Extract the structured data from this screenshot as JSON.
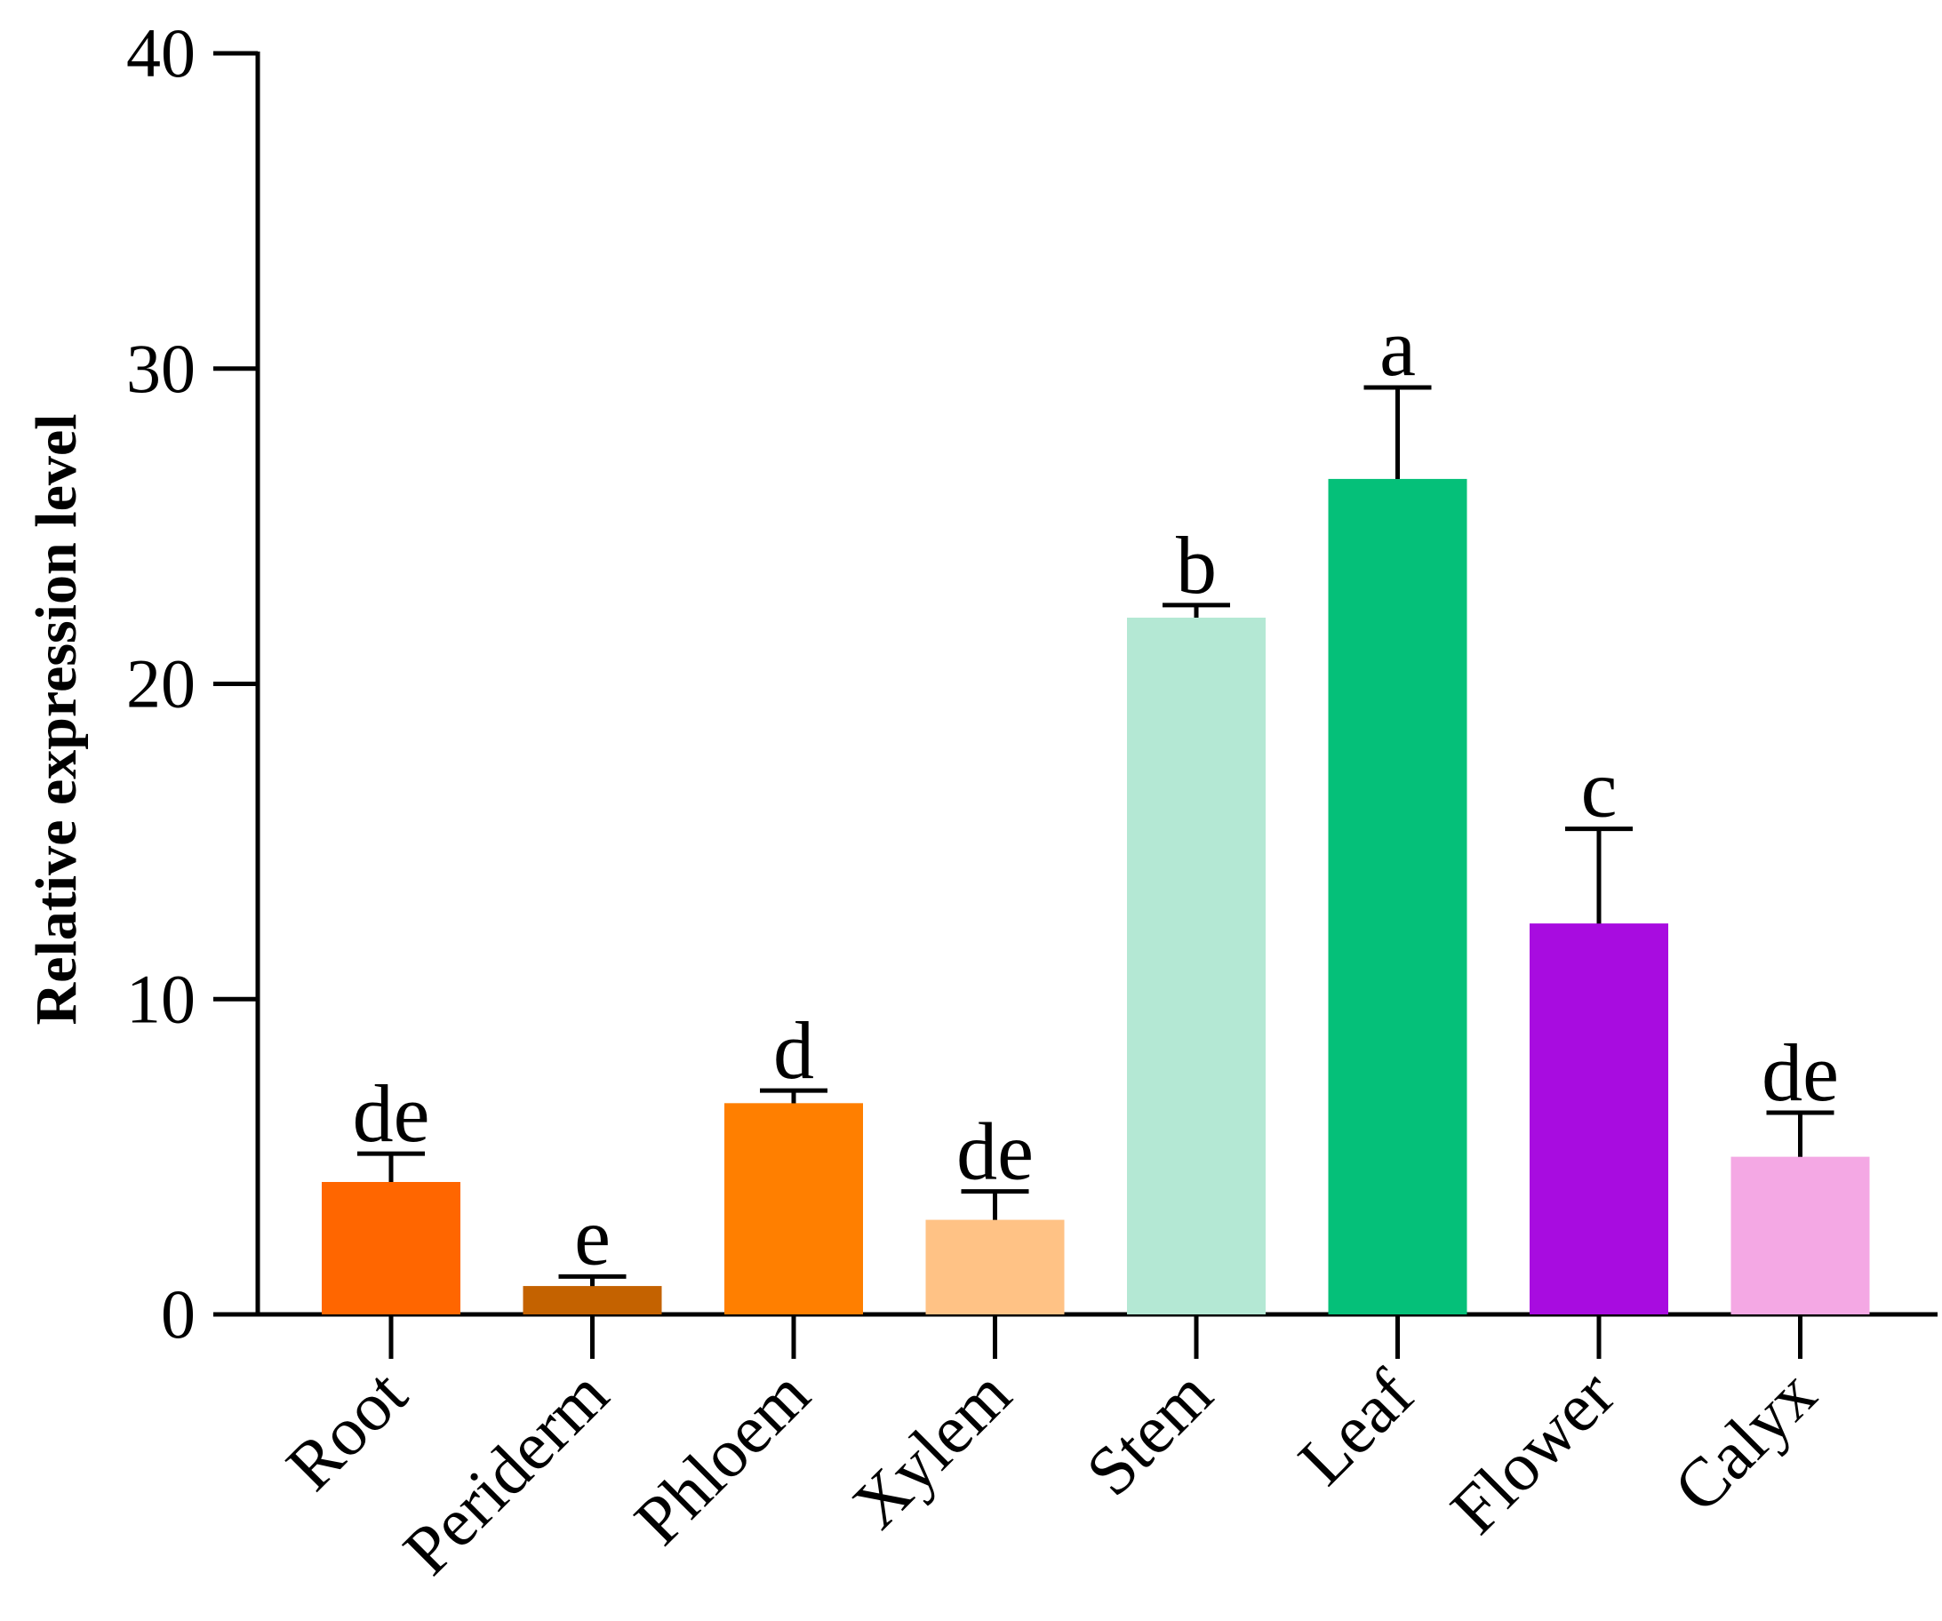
{
  "chart_data": {
    "type": "bar",
    "title": "",
    "xlabel": "",
    "ylabel": "Relative expression level",
    "ylim": [
      0,
      40
    ],
    "yticks": [
      0,
      10,
      20,
      30,
      40
    ],
    "categories": [
      "Root",
      "Periderm",
      "Phloem",
      "Xylem",
      "Stem",
      "Leaf",
      "Flower",
      "Calyx"
    ],
    "values": [
      4.2,
      0.9,
      6.7,
      3.0,
      22.1,
      26.5,
      12.4,
      5.0
    ],
    "errors": [
      0.9,
      0.3,
      0.4,
      0.9,
      0.4,
      2.9,
      3.0,
      1.4
    ],
    "significance": [
      "de",
      "e",
      "d",
      "de",
      "b",
      "a",
      "c",
      "de"
    ],
    "colors": [
      "#ff6600",
      "#c46200",
      "#ff7f00",
      "#ffc285",
      "#b4e8d4",
      "#05c079",
      "#a80ce0",
      "#f4a8e4"
    ],
    "grid": false,
    "legend": "none"
  }
}
